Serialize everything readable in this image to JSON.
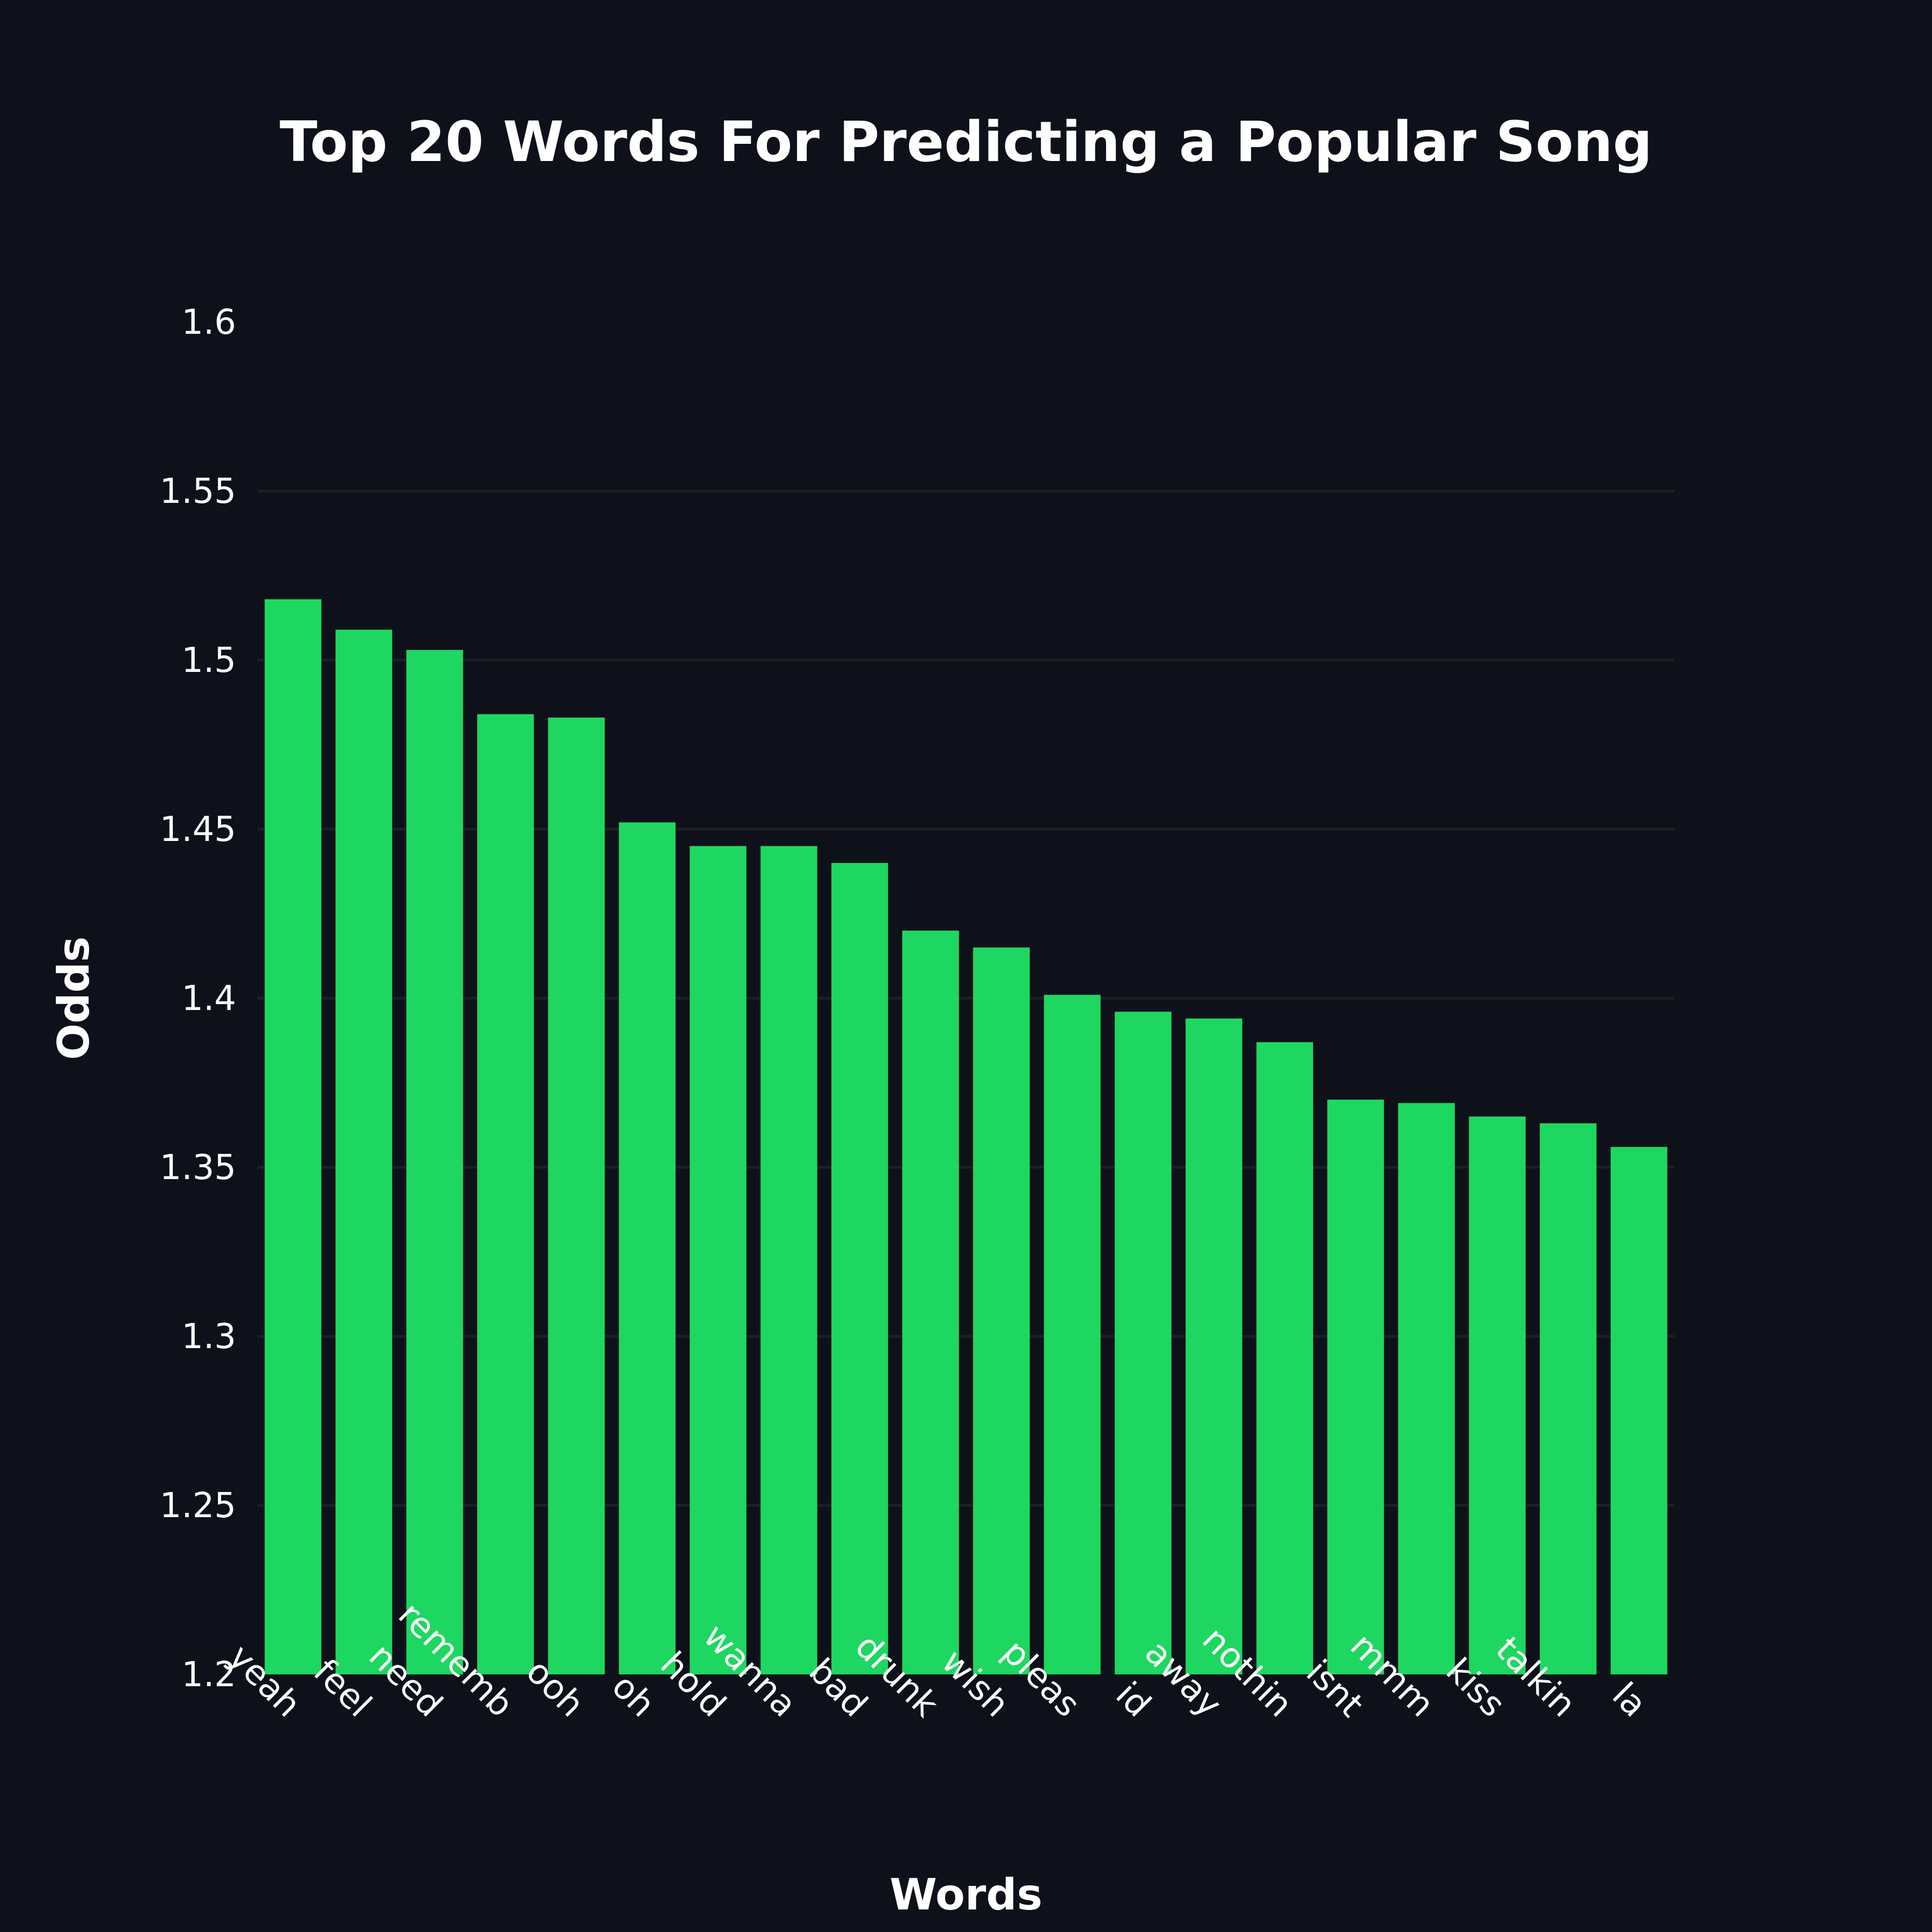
{
  "chart_data": {
    "type": "bar",
    "title": "Top 20 Words For Predicting a Popular Song",
    "xlabel": "Words",
    "ylabel": "Odds",
    "categories": [
      "yeah",
      "feel",
      "need",
      "rememb",
      "ooh",
      "oh",
      "hold",
      "wanna",
      "bad",
      "drunk",
      "wish",
      "pleas",
      "id",
      "away",
      "nothin",
      "isnt",
      "mmm",
      "kiss",
      "talkin",
      "la"
    ],
    "values": [
      1.518,
      1.509,
      1.503,
      1.484,
      1.483,
      1.452,
      1.445,
      1.445,
      1.44,
      1.42,
      1.415,
      1.401,
      1.396,
      1.394,
      1.387,
      1.37,
      1.369,
      1.365,
      1.363,
      1.356
    ],
    "ylim": [
      1.2,
      1.6
    ],
    "yticks": [
      "1.2",
      "1.25",
      "1.3",
      "1.35",
      "1.4",
      "1.45",
      "1.5",
      "1.55",
      "1.6"
    ],
    "grid": true,
    "bar_color": "#1ed760",
    "background_color": "#0e111a",
    "text_color": "#ffffff"
  }
}
